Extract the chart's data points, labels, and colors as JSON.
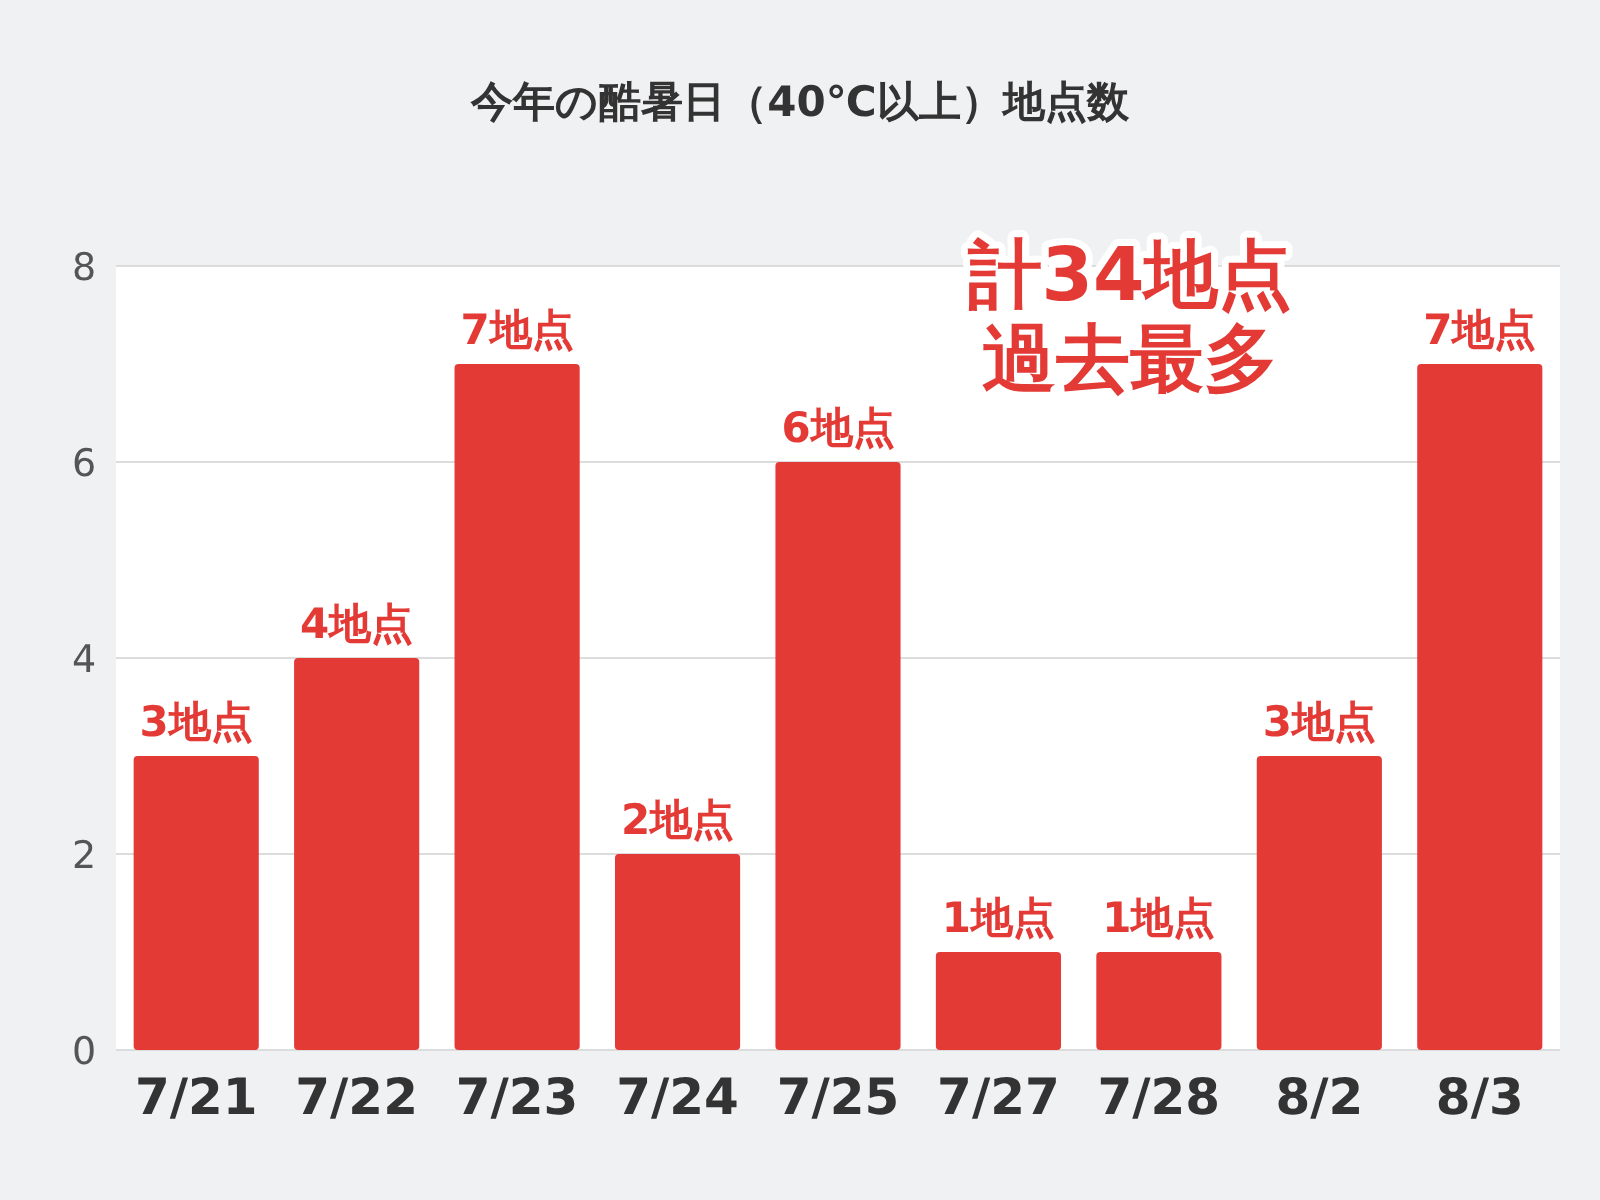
{
  "chart_data": {
    "type": "bar",
    "title": "今年の酷暑日（40℃以上）地点数",
    "categories": [
      "7/21",
      "7/22",
      "7/23",
      "7/24",
      "7/25",
      "7/27",
      "7/28",
      "8/2",
      "8/3"
    ],
    "values": [
      3,
      4,
      7,
      2,
      6,
      1,
      1,
      3,
      7
    ],
    "value_labels": [
      "3地点",
      "4地点",
      "7地点",
      "2地点",
      "6地点",
      "1地点",
      "1地点",
      "3地点",
      "7地点"
    ],
    "color": "#e43a36",
    "ylim": [
      0,
      8
    ],
    "yticks": [
      0,
      2,
      4,
      6,
      8
    ],
    "grid": "y",
    "annotations": [
      "計34地点",
      "過去最多"
    ]
  }
}
